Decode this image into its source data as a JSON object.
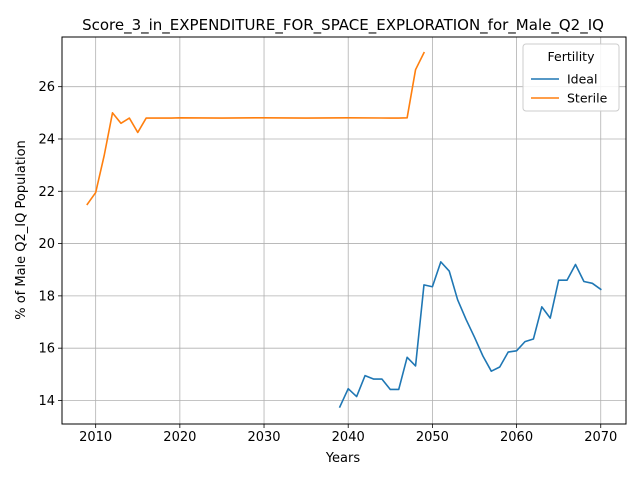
{
  "chart_data": {
    "type": "line",
    "title": "Score_3_in_EXPENDITURE_FOR_SPACE_EXPLORATION_for_Male_Q2_IQ",
    "xlabel": "Years",
    "ylabel": "% of Male Q2_IQ Population",
    "xlim": [
      2006,
      2073
    ],
    "ylim": [
      13.1,
      27.9
    ],
    "xticks": [
      2010,
      2020,
      2030,
      2040,
      2050,
      2060,
      2070
    ],
    "yticks": [
      14,
      16,
      18,
      20,
      22,
      24,
      26
    ],
    "grid": true,
    "legend": {
      "title": "Fertility",
      "position": "top-right"
    },
    "series": [
      {
        "name": "Ideal",
        "color": "#1f77b4",
        "x": [
          2039,
          2040,
          2041,
          2042,
          2043,
          2044,
          2045,
          2046,
          2047,
          2048,
          2049,
          2050,
          2051,
          2052,
          2053,
          2054,
          2055,
          2056,
          2057,
          2058,
          2059,
          2060,
          2061,
          2062,
          2063,
          2064,
          2065,
          2066,
          2067,
          2068,
          2069,
          2070
        ],
        "y": [
          13.75,
          14.45,
          14.15,
          14.95,
          14.82,
          14.82,
          14.42,
          14.42,
          15.65,
          15.32,
          18.42,
          18.35,
          19.3,
          18.95,
          17.85,
          17.1,
          16.42,
          15.7,
          15.12,
          15.28,
          15.85,
          15.9,
          16.25,
          16.35,
          17.58,
          17.15,
          18.6,
          18.6,
          19.2,
          18.55,
          18.48,
          18.25
        ]
      },
      {
        "name": "Sterile",
        "color": "#ff7f0e",
        "x": [
          2009,
          2010,
          2011,
          2012,
          2013,
          2014,
          2015,
          2016,
          2017,
          2018,
          2019,
          2020,
          2025,
          2030,
          2035,
          2040,
          2045,
          2046,
          2047,
          2048,
          2049
        ],
        "y": [
          21.5,
          21.95,
          23.35,
          25.0,
          24.6,
          24.8,
          24.25,
          24.8,
          24.8,
          24.8,
          24.8,
          24.81,
          24.8,
          24.81,
          24.8,
          24.81,
          24.8,
          24.8,
          24.81,
          26.65,
          27.3
        ]
      }
    ]
  }
}
